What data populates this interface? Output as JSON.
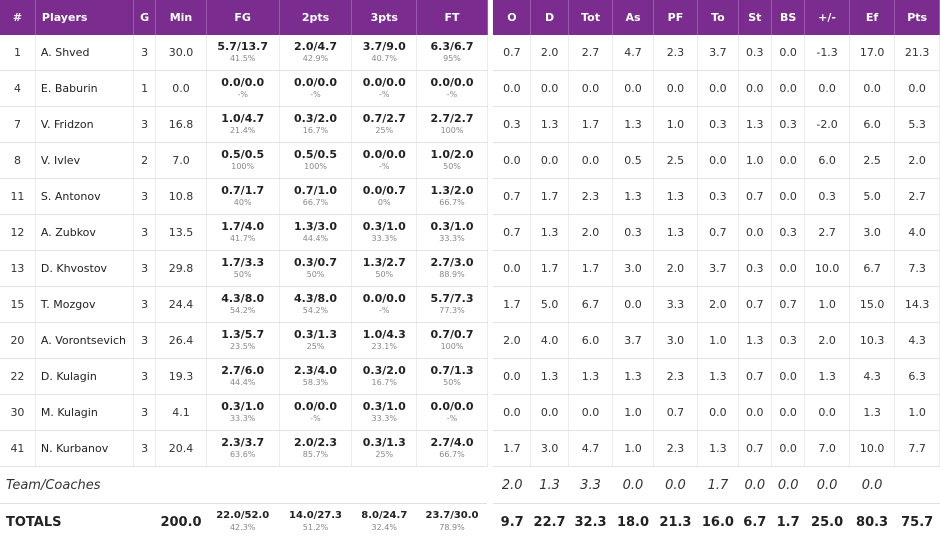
{
  "headers": {
    "num": "#",
    "player": "Players",
    "g": "G",
    "min": "Min",
    "fg": "FG",
    "p2": "2pts",
    "p3": "3pts",
    "ft": "FT",
    "o": "O",
    "d": "D",
    "tot": "Tot",
    "as": "As",
    "pf": "PF",
    "to": "To",
    "st": "St",
    "bs": "BS",
    "pm": "+/-",
    "ef": "Ef",
    "pts": "Pts"
  },
  "players": [
    {
      "num": "1",
      "name": "A. Shved",
      "g": "3",
      "min": "30.0",
      "fg": "5.7/13.7",
      "fg_pct": "41.5%",
      "p2": "2.0/4.7",
      "p2_pct": "42.9%",
      "p3": "3.7/9.0",
      "p3_pct": "40.7%",
      "ft": "6.3/6.7",
      "ft_pct": "95%",
      "o": "0.7",
      "d": "2.0",
      "tot": "2.7",
      "as": "4.7",
      "pf": "2.3",
      "to": "3.7",
      "st": "0.3",
      "bs": "0.0",
      "pm": "-1.3",
      "ef": "17.0",
      "pts": "21.3"
    },
    {
      "num": "4",
      "name": "E. Baburin",
      "g": "1",
      "min": "0.0",
      "fg": "0.0/0.0",
      "fg_pct": "-%",
      "p2": "0.0/0.0",
      "p2_pct": "-%",
      "p3": "0.0/0.0",
      "p3_pct": "-%",
      "ft": "0.0/0.0",
      "ft_pct": "-%",
      "o": "0.0",
      "d": "0.0",
      "tot": "0.0",
      "as": "0.0",
      "pf": "0.0",
      "to": "0.0",
      "st": "0.0",
      "bs": "0.0",
      "pm": "0.0",
      "ef": "0.0",
      "pts": "0.0"
    },
    {
      "num": "7",
      "name": "V. Fridzon",
      "g": "3",
      "min": "16.8",
      "fg": "1.0/4.7",
      "fg_pct": "21.4%",
      "p2": "0.3/2.0",
      "p2_pct": "16.7%",
      "p3": "0.7/2.7",
      "p3_pct": "25%",
      "ft": "2.7/2.7",
      "ft_pct": "100%",
      "o": "0.3",
      "d": "1.3",
      "tot": "1.7",
      "as": "1.3",
      "pf": "1.0",
      "to": "0.3",
      "st": "1.3",
      "bs": "0.3",
      "pm": "-2.0",
      "ef": "6.0",
      "pts": "5.3"
    },
    {
      "num": "8",
      "name": "V. Ivlev",
      "g": "2",
      "min": "7.0",
      "fg": "0.5/0.5",
      "fg_pct": "100%",
      "p2": "0.5/0.5",
      "p2_pct": "100%",
      "p3": "0.0/0.0",
      "p3_pct": "-%",
      "ft": "1.0/2.0",
      "ft_pct": "50%",
      "o": "0.0",
      "d": "0.0",
      "tot": "0.0",
      "as": "0.5",
      "pf": "2.5",
      "to": "0.0",
      "st": "1.0",
      "bs": "0.0",
      "pm": "6.0",
      "ef": "2.5",
      "pts": "2.0"
    },
    {
      "num": "11",
      "name": "S. Antonov",
      "g": "3",
      "min": "10.8",
      "fg": "0.7/1.7",
      "fg_pct": "40%",
      "p2": "0.7/1.0",
      "p2_pct": "66.7%",
      "p3": "0.0/0.7",
      "p3_pct": "0%",
      "ft": "1.3/2.0",
      "ft_pct": "66.7%",
      "o": "0.7",
      "d": "1.7",
      "tot": "2.3",
      "as": "1.3",
      "pf": "1.3",
      "to": "0.3",
      "st": "0.7",
      "bs": "0.0",
      "pm": "0.3",
      "ef": "5.0",
      "pts": "2.7"
    },
    {
      "num": "12",
      "name": "A. Zubkov",
      "g": "3",
      "min": "13.5",
      "fg": "1.7/4.0",
      "fg_pct": "41.7%",
      "p2": "1.3/3.0",
      "p2_pct": "44.4%",
      "p3": "0.3/1.0",
      "p3_pct": "33.3%",
      "ft": "0.3/1.0",
      "ft_pct": "33.3%",
      "o": "0.7",
      "d": "1.3",
      "tot": "2.0",
      "as": "0.3",
      "pf": "1.3",
      "to": "0.7",
      "st": "0.0",
      "bs": "0.3",
      "pm": "2.7",
      "ef": "3.0",
      "pts": "4.0"
    },
    {
      "num": "13",
      "name": "D. Khvostov",
      "g": "3",
      "min": "29.8",
      "fg": "1.7/3.3",
      "fg_pct": "50%",
      "p2": "0.3/0.7",
      "p2_pct": "50%",
      "p3": "1.3/2.7",
      "p3_pct": "50%",
      "ft": "2.7/3.0",
      "ft_pct": "88.9%",
      "o": "0.0",
      "d": "1.7",
      "tot": "1.7",
      "as": "3.0",
      "pf": "2.0",
      "to": "3.7",
      "st": "0.3",
      "bs": "0.0",
      "pm": "10.0",
      "ef": "6.7",
      "pts": "7.3"
    },
    {
      "num": "15",
      "name": "T. Mozgov",
      "g": "3",
      "min": "24.4",
      "fg": "4.3/8.0",
      "fg_pct": "54.2%",
      "p2": "4.3/8.0",
      "p2_pct": "54.2%",
      "p3": "0.0/0.0",
      "p3_pct": "-%",
      "ft": "5.7/7.3",
      "ft_pct": "77.3%",
      "o": "1.7",
      "d": "5.0",
      "tot": "6.7",
      "as": "0.0",
      "pf": "3.3",
      "to": "2.0",
      "st": "0.7",
      "bs": "0.7",
      "pm": "1.0",
      "ef": "15.0",
      "pts": "14.3"
    },
    {
      "num": "20",
      "name": "A. Vorontsevich",
      "g": "3",
      "min": "26.4",
      "fg": "1.3/5.7",
      "fg_pct": "23.5%",
      "p2": "0.3/1.3",
      "p2_pct": "25%",
      "p3": "1.0/4.3",
      "p3_pct": "23.1%",
      "ft": "0.7/0.7",
      "ft_pct": "100%",
      "o": "2.0",
      "d": "4.0",
      "tot": "6.0",
      "as": "3.7",
      "pf": "3.0",
      "to": "1.0",
      "st": "1.3",
      "bs": "0.3",
      "pm": "2.0",
      "ef": "10.3",
      "pts": "4.3"
    },
    {
      "num": "22",
      "name": "D. Kulagin",
      "g": "3",
      "min": "19.3",
      "fg": "2.7/6.0",
      "fg_pct": "44.4%",
      "p2": "2.3/4.0",
      "p2_pct": "58.3%",
      "p3": "0.3/2.0",
      "p3_pct": "16.7%",
      "ft": "0.7/1.3",
      "ft_pct": "50%",
      "o": "0.0",
      "d": "1.3",
      "tot": "1.3",
      "as": "1.3",
      "pf": "2.3",
      "to": "1.3",
      "st": "0.7",
      "bs": "0.0",
      "pm": "1.3",
      "ef": "4.3",
      "pts": "6.3"
    },
    {
      "num": "30",
      "name": "M. Kulagin",
      "g": "3",
      "min": "4.1",
      "fg": "0.3/1.0",
      "fg_pct": "33.3%",
      "p2": "0.0/0.0",
      "p2_pct": "-%",
      "p3": "0.3/1.0",
      "p3_pct": "33.3%",
      "ft": "0.0/0.0",
      "ft_pct": "-%",
      "o": "0.0",
      "d": "0.0",
      "tot": "0.0",
      "as": "1.0",
      "pf": "0.7",
      "to": "0.0",
      "st": "0.0",
      "bs": "0.0",
      "pm": "0.0",
      "ef": "1.3",
      "pts": "1.0"
    },
    {
      "num": "41",
      "name": "N. Kurbanov",
      "g": "3",
      "min": "20.4",
      "fg": "2.3/3.7",
      "fg_pct": "63.6%",
      "p2": "2.0/2.3",
      "p2_pct": "85.7%",
      "p3": "0.3/1.3",
      "p3_pct": "25%",
      "ft": "2.7/4.0",
      "ft_pct": "66.7%",
      "o": "1.7",
      "d": "3.0",
      "tot": "4.7",
      "as": "1.0",
      "pf": "2.3",
      "to": "1.3",
      "st": "0.7",
      "bs": "0.0",
      "pm": "7.0",
      "ef": "10.0",
      "pts": "7.7"
    }
  ],
  "team": {
    "label": "Team/Coaches",
    "o": "2.0",
    "d": "1.3",
    "tot": "3.3",
    "as": "0.0",
    "pf": "0.0",
    "to": "1.7",
    "st": "0.0",
    "bs": "0.0",
    "pm": "0.0",
    "ef": "0.0"
  },
  "totals": {
    "label": "TOTALS",
    "min": "200.0",
    "fg": "22.0/52.0",
    "fg_pct": "42.3%",
    "p2": "14.0/27.3",
    "p2_pct": "51.2%",
    "p3": "8.0/24.7",
    "p3_pct": "32.4%",
    "ft": "23.7/30.0",
    "ft_pct": "78.9%",
    "o": "9.7",
    "d": "22.7",
    "tot": "32.3",
    "as": "18.0",
    "pf": "21.3",
    "to": "16.0",
    "st": "6.7",
    "bs": "1.7",
    "pm": "25.0",
    "ef": "80.3",
    "pts": "75.7"
  },
  "colors": {
    "header_bg": "#7a2c8f",
    "header_text": "#ffffff"
  }
}
